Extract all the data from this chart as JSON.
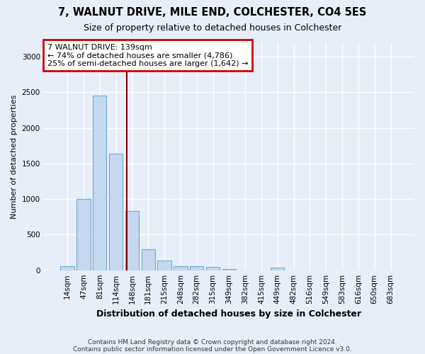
{
  "title1": "7, WALNUT DRIVE, MILE END, COLCHESTER, CO4 5ES",
  "title2": "Size of property relative to detached houses in Colchester",
  "xlabel": "Distribution of detached houses by size in Colchester",
  "ylabel": "Number of detached properties",
  "categories": [
    "14sqm",
    "47sqm",
    "81sqm",
    "114sqm",
    "148sqm",
    "181sqm",
    "215sqm",
    "248sqm",
    "282sqm",
    "315sqm",
    "349sqm",
    "382sqm",
    "415sqm",
    "449sqm",
    "482sqm",
    "516sqm",
    "549sqm",
    "583sqm",
    "616sqm",
    "650sqm",
    "683sqm"
  ],
  "values": [
    60,
    1000,
    2450,
    1640,
    830,
    295,
    140,
    55,
    55,
    45,
    20,
    0,
    0,
    35,
    0,
    0,
    0,
    0,
    0,
    0,
    0
  ],
  "bar_color": "#c5d8f0",
  "bar_edge_color": "#6aaad4",
  "annotation_line1": "7 WALNUT DRIVE: 139sqm",
  "annotation_line2": "← 74% of detached houses are smaller (4,786)",
  "annotation_line3": "25% of semi-detached houses are larger (1,642) →",
  "annotation_box_color": "#ffffff",
  "annotation_box_edge": "#cc0000",
  "vline_color": "#8b0000",
  "vline_x_index": 3.68,
  "ylim": [
    0,
    3200
  ],
  "yticks": [
    0,
    500,
    1000,
    1500,
    2000,
    2500,
    3000
  ],
  "footer1": "Contains HM Land Registry data © Crown copyright and database right 2024.",
  "footer2": "Contains public sector information licensed under the Open Government Licence v3.0.",
  "bg_color": "#e8eef8",
  "plot_bg_color": "#e8eef8",
  "grid_color": "#ffffff",
  "title1_fontsize": 10.5,
  "title2_fontsize": 9,
  "ylabel_fontsize": 8,
  "xlabel_fontsize": 9,
  "tick_fontsize": 7.5,
  "annotation_fontsize": 8
}
